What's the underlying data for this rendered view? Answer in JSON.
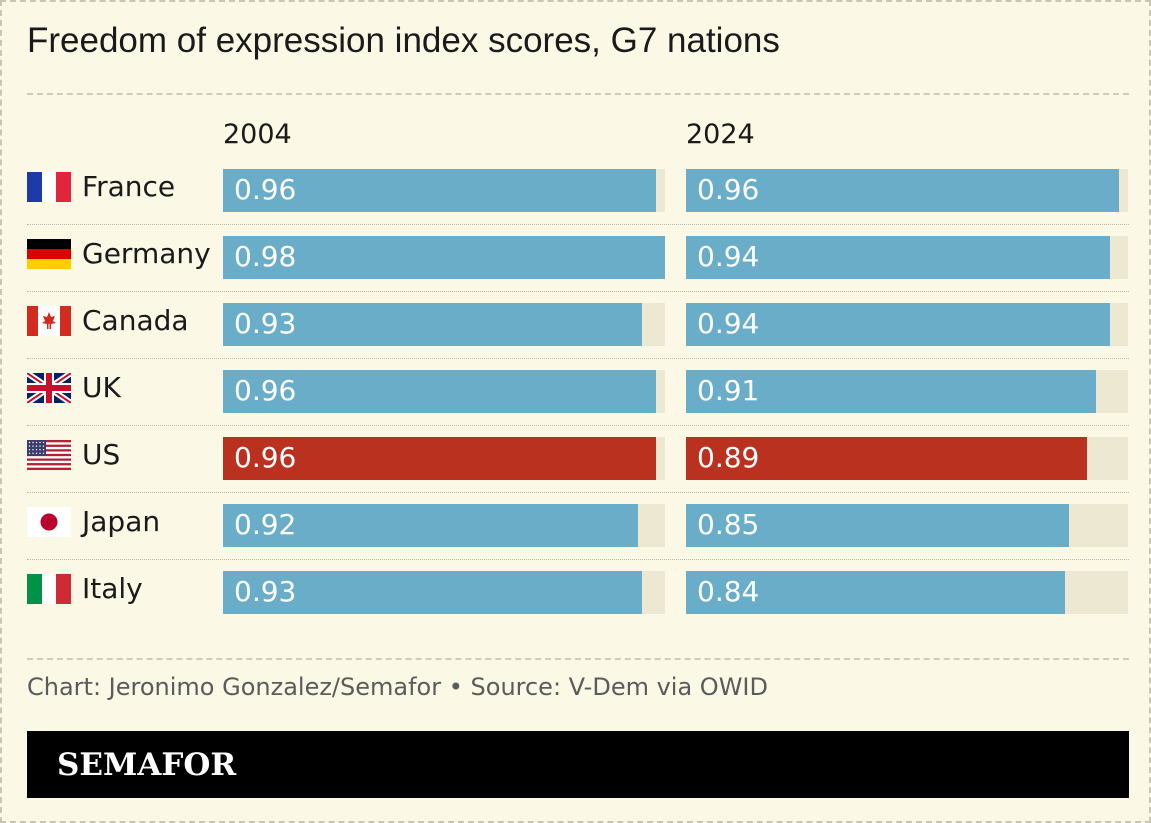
{
  "title": "Freedom of expression index scores, G7 nations",
  "credit": "Chart: Jeronimo Gonzalez/Semafor • Source: V-Dem via OWID",
  "brand": "SEMAFOR",
  "colors": {
    "background": "#fbf8e6",
    "bar": "#6aadc9",
    "highlight_bar": "#bb3120",
    "track": "#ece8d2",
    "footer": "#000000"
  },
  "chart_data": {
    "type": "bar",
    "orientation": "horizontal",
    "title": "Freedom of expression index scores, G7 nations",
    "panels": [
      "2004",
      "2024"
    ],
    "xlim": [
      0,
      1
    ],
    "categories": [
      "France",
      "Germany",
      "Canada",
      "UK",
      "US",
      "Japan",
      "Italy"
    ],
    "series": [
      {
        "name": "2004",
        "values": [
          0.96,
          0.98,
          0.93,
          0.96,
          0.96,
          0.92,
          0.93
        ]
      },
      {
        "name": "2024",
        "values": [
          0.96,
          0.94,
          0.94,
          0.91,
          0.89,
          0.85,
          0.84
        ]
      }
    ],
    "highlight": "US",
    "flag_icons": [
      "france-flag-icon",
      "germany-flag-icon",
      "canada-flag-icon",
      "uk-flag-icon",
      "us-flag-icon",
      "japan-flag-icon",
      "italy-flag-icon"
    ]
  }
}
